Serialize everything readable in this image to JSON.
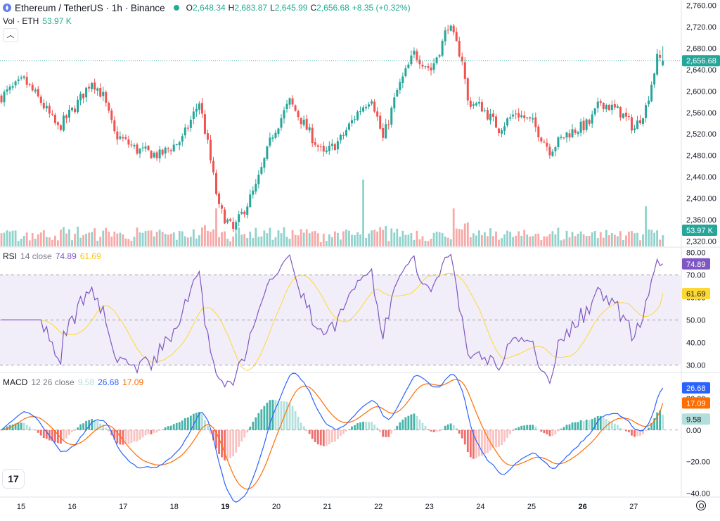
{
  "header": {
    "title": "Ethereum / TetherUS · 1h · Binance",
    "open_label": "O",
    "open": "2,648.34",
    "high_label": "H",
    "high": "2,683.87",
    "low_label": "L",
    "low": "2,645.99",
    "close_label": "C",
    "close": "2,656.68",
    "change": "+8.35 (+0.32%)"
  },
  "volume_header": {
    "label": "Vol · ETH",
    "value": "53.97 K"
  },
  "collapse_icon": "chevron-up",
  "rsi_header": {
    "label": "RSI",
    "params": "14 close",
    "value": "74.89",
    "ma_value": "61.69"
  },
  "macd_header": {
    "label": "MACD",
    "params": "12 26 close",
    "hist": "9.58",
    "macd": "26.68",
    "signal": "17.09"
  },
  "colors": {
    "up": "#26a69a",
    "down": "#ef5350",
    "rsi": "#7e57c2",
    "rsi_ma": "#fdd835",
    "macd": "#2962ff",
    "signal": "#ff6d00",
    "hist_up": "#26a69a",
    "hist_down": "#ef5350"
  },
  "chart_data": [
    {
      "type": "candlestick",
      "title": "Ethereum / TetherUS · 1h · Binance",
      "x_ticks": [
        "15",
        "16",
        "17",
        "18",
        "19",
        "20",
        "21",
        "22",
        "23",
        "24",
        "25",
        "26",
        "27"
      ],
      "bold_ticks": [
        "19",
        "26"
      ],
      "y_ticks": [
        "2,760.00",
        "2,720.00",
        "2,680.00",
        "2,640.00",
        "2,600.00",
        "2,560.00",
        "2,520.00",
        "2,480.00",
        "2,440.00",
        "2,400.00",
        "2,360.00",
        "2,320.00"
      ],
      "ylim": [
        2310,
        2770
      ],
      "last_price_label": "2,656.68",
      "last_price": 2656.68,
      "volume_label": "53.97 K",
      "anchors": [
        [
          0,
          2590
        ],
        [
          8,
          2620
        ],
        [
          14,
          2580
        ],
        [
          20,
          2530
        ],
        [
          26,
          2570
        ],
        [
          32,
          2620
        ],
        [
          36,
          2590
        ],
        [
          40,
          2520
        ],
        [
          48,
          2490
        ],
        [
          56,
          2480
        ],
        [
          64,
          2510
        ],
        [
          70,
          2580
        ],
        [
          73,
          2500
        ],
        [
          77,
          2380
        ],
        [
          82,
          2340
        ],
        [
          90,
          2420
        ],
        [
          96,
          2520
        ],
        [
          102,
          2580
        ],
        [
          108,
          2530
        ],
        [
          114,
          2480
        ],
        [
          120,
          2510
        ],
        [
          126,
          2560
        ],
        [
          131,
          2590
        ],
        [
          135,
          2510
        ],
        [
          140,
          2600
        ],
        [
          146,
          2670
        ],
        [
          152,
          2640
        ],
        [
          156,
          2690
        ],
        [
          158,
          2725
        ],
        [
          163,
          2660
        ],
        [
          165,
          2580
        ],
        [
          170,
          2570
        ],
        [
          176,
          2530
        ],
        [
          182,
          2560
        ],
        [
          188,
          2540
        ],
        [
          194,
          2490
        ],
        [
          200,
          2520
        ],
        [
          208,
          2540
        ],
        [
          212,
          2580
        ],
        [
          219,
          2560
        ],
        [
          224,
          2530
        ],
        [
          228,
          2570
        ],
        [
          232,
          2660
        ]
      ],
      "volume_spikes": {
        "76": 0.9,
        "128": 1.4,
        "160": 0.9,
        "228": 0.95
      }
    },
    {
      "type": "line",
      "title": "RSI 14 close",
      "y_ticks": [
        "80.00",
        "70.00",
        "60.00",
        "50.00",
        "40.00",
        "30.00"
      ],
      "ylim": [
        27,
        82
      ],
      "band": [
        30,
        70
      ],
      "mid": 50,
      "value_label": "74.89",
      "ma_label": "61.69",
      "value": 74.89,
      "ma": 61.69
    },
    {
      "type": "line",
      "title": "MACD 12 26 close",
      "y_ticks": [
        "20.00",
        "0.00",
        "-20.00",
        "-40.00"
      ],
      "ylim": [
        -42,
        36
      ],
      "macd_label": "26.68",
      "signal_label": "17.09",
      "hist_label": "9.58",
      "macd": 26.68,
      "signal": 17.09,
      "hist": 9.58
    }
  ]
}
